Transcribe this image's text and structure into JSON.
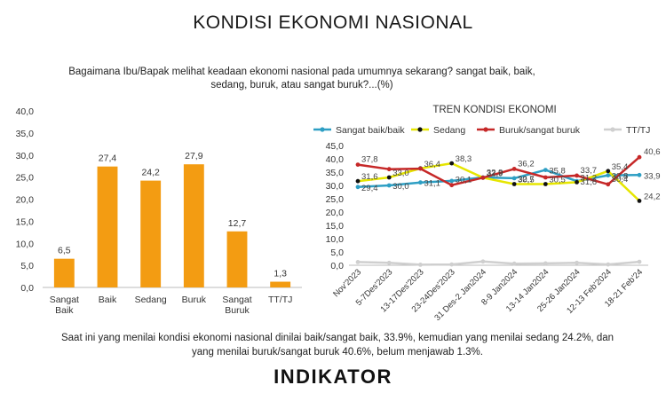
{
  "page": {
    "title": "KONDISI EKONOMI NASIONAL",
    "question_line1": "Bagaimana Ibu/Bapak melihat keadaan ekonomi nasional pada umumnya sekarang? sangat baik, baik,",
    "question_line2": "sedang, buruk, atau sangat buruk?...(%)",
    "footer_line1": "Saat ini yang menilai kondisi ekonomi nasional dinilai baik/sangat baik, 33.9%, kemudian yang menilai sedang 24.2%, dan",
    "footer_line2": "yang menilai buruk/sangat buruk 40.6%, belum menjawab 1.3%.",
    "brand": "INDIKATOR"
  },
  "chart_data": [
    {
      "type": "bar",
      "title": "",
      "categories": [
        "Sangat Baik",
        "Baik",
        "Sedang",
        "Buruk",
        "Sangat Buruk",
        "TT/TJ"
      ],
      "category_lines": [
        [
          "Sangat",
          "Baik"
        ],
        [
          "Baik"
        ],
        [
          "Sedang"
        ],
        [
          "Buruk"
        ],
        [
          "Sangat",
          "Buruk"
        ],
        [
          "TT/TJ"
        ]
      ],
      "values": [
        6.5,
        27.4,
        24.2,
        27.9,
        12.7,
        1.3
      ],
      "value_labels": [
        "6,5",
        "27,4",
        "24,2",
        "27,9",
        "12,7",
        "1,3"
      ],
      "ylim": [
        0,
        40
      ],
      "yticks": [
        "0,0",
        "5,0",
        "10,0",
        "15,0",
        "20,0",
        "25,0",
        "30,0",
        "35,0",
        "40,0"
      ],
      "color": "#F39C12"
    },
    {
      "type": "line",
      "title": "TREN KONDISI EKONOMI",
      "categories": [
        "Nov'2023",
        "5-7Des'2023",
        "13-17Des'2023",
        "23-24Des'2023",
        "31 Des-2 Jan2024",
        "8-9 Jan2024",
        "13-14 Jan2024",
        "25-26 Jan2024",
        "12-13 Feb'2024",
        "18-21 Feb'24"
      ],
      "ylim": [
        0,
        45
      ],
      "yticks": [
        "0,0",
        "5,0",
        "10,0",
        "15,0",
        "20,0",
        "25,0",
        "30,0",
        "35,0",
        "40,0",
        "45,0"
      ],
      "series": [
        {
          "name": "Sangat baik/baik",
          "color": "#2E9FC4",
          "marker": "#2E9FC4",
          "values": [
            29.4,
            30.0,
            31.1,
            31.7,
            33.0,
            32.7,
            35.8,
            31.6,
            33.8,
            33.9
          ],
          "labels": [
            "29,4",
            "30,0",
            "31,1",
            "",
            "",
            "32,7",
            "35,8",
            "31,6",
            "33,8",
            "33,9"
          ]
        },
        {
          "name": "Sedang",
          "color": "#E6E600",
          "marker": "#111111",
          "values": [
            31.6,
            33.0,
            36.4,
            38.3,
            32.9,
            30.5,
            30.5,
            31.2,
            35.4,
            24.2
          ],
          "labels": [
            "31,6",
            "33,0",
            "36,4",
            "38,3",
            "32,9",
            "30,5",
            "30,5",
            "31,2",
            "35,4",
            "24,2"
          ]
        },
        {
          "name": "Buruk/sangat buruk",
          "color": "#C62828",
          "marker": "#C62828",
          "values": [
            37.8,
            36.1,
            36.3,
            30.1,
            32.9,
            36.2,
            33.0,
            33.7,
            30.4,
            40.6
          ],
          "labels": [
            "37,8",
            "",
            "",
            "30,1",
            "32,9",
            "36,2",
            "",
            "33,7",
            "30,4",
            "40,6"
          ]
        },
        {
          "name": "TT/TJ",
          "color": "#CFCFCF",
          "marker": "#CFCFCF",
          "values": [
            1.2,
            0.9,
            0.2,
            0.3,
            1.4,
            0.6,
            0.7,
            0.9,
            0.3,
            1.3
          ],
          "labels": [
            "",
            "",
            "",
            "",
            "",
            "",
            "",
            "",
            "",
            ""
          ]
        }
      ],
      "legend": "top"
    }
  ]
}
